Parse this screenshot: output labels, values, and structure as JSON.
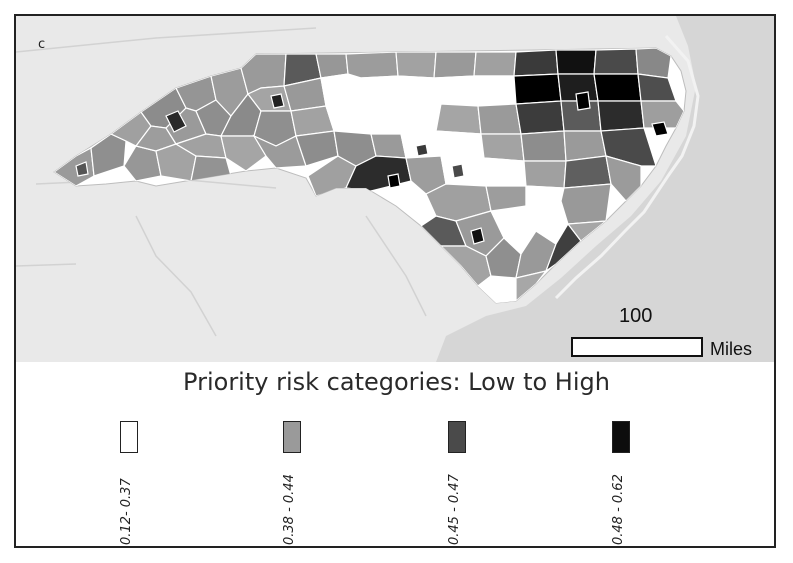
{
  "figure": {
    "panel_label": "c",
    "scale_bar": {
      "value": "100",
      "unit": "Miles"
    },
    "legend": {
      "title": "Priority risk categories: Low to High",
      "categories": [
        {
          "range": "0.12- 0.37",
          "color": "#ffffff"
        },
        {
          "range": "0.38 - 0.44",
          "color": "#9a9a9a"
        },
        {
          "range": "0.45 - 0.47",
          "color": "#4a4a4a"
        },
        {
          "range": "0.48 - 0.62",
          "color": "#0d0d0d"
        }
      ]
    },
    "colors": {
      "background_land": "#e9e9e9",
      "ocean": "#d4d4d4",
      "county_border": "#ffffff"
    }
  }
}
